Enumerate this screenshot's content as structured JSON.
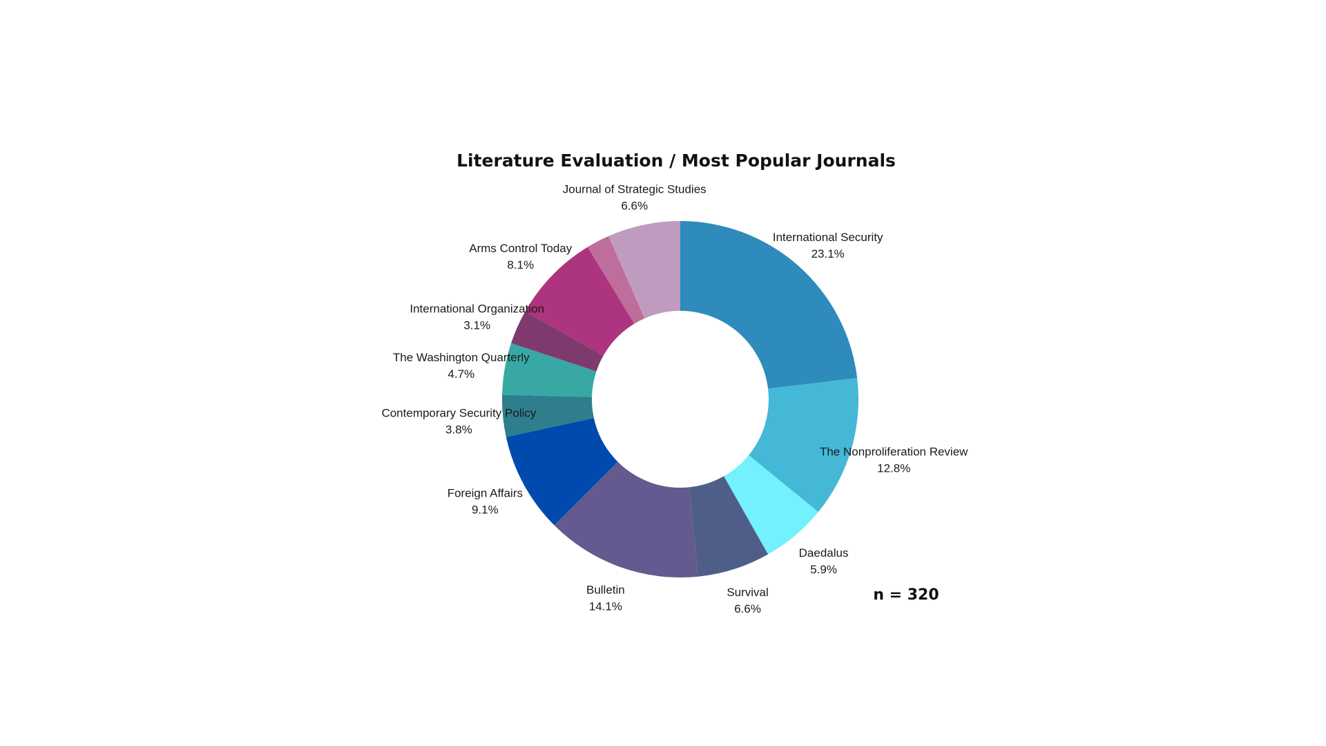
{
  "chart_data": {
    "type": "pie",
    "title": "Literature Evaluation / Most Popular Journals",
    "sample_note": "n = 320",
    "slices": [
      {
        "name": "International Security",
        "value": 23.1,
        "label": "23.1%",
        "color": "#2E8BBB"
      },
      {
        "name": "The Nonproliferation Review",
        "value": 12.8,
        "label": "12.8%",
        "color": "#44B8D6"
      },
      {
        "name": "Daedalus",
        "value": 5.9,
        "label": "5.9%",
        "color": "#74F1FF"
      },
      {
        "name": "Survival",
        "value": 6.6,
        "label": "6.6%",
        "color": "#4F5E88"
      },
      {
        "name": "Bulletin",
        "value": 14.1,
        "label": "14.1%",
        "color": "#645A8F"
      },
      {
        "name": "Foreign Affairs",
        "value": 9.1,
        "label": "9.1%",
        "color": "#004AAE"
      },
      {
        "name": "Contemporary Security Policy",
        "value": 3.8,
        "label": "3.8%",
        "color": "#2E7E8E"
      },
      {
        "name": "The Washington Quarterly",
        "value": 4.7,
        "label": "4.7%",
        "color": "#38A8A5"
      },
      {
        "name": "International Organization",
        "value": 3.1,
        "label": "3.1%",
        "color": "#7E3A6C"
      },
      {
        "name": "Arms Control Today",
        "value": 8.1,
        "label": "8.1%",
        "color": "#AD347E"
      },
      {
        "name": "",
        "value": 2.1,
        "label": "",
        "color": "#BF6D9B"
      },
      {
        "name": "Journal of Strategic Studies",
        "value": 6.6,
        "label": "6.6%",
        "color": "#BF9BBF"
      }
    ]
  }
}
